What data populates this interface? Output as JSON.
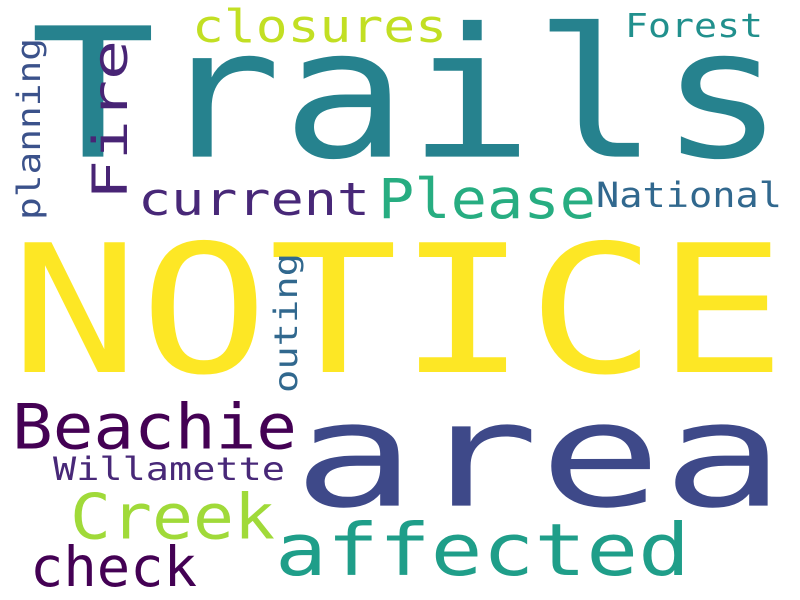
{
  "words": [
    {
      "text": "NOTICE",
      "color": "#fde725",
      "orientation": "horizontal"
    },
    {
      "text": "Trails",
      "color": "#26828e",
      "orientation": "horizontal"
    },
    {
      "text": "area",
      "color": "#3e4989",
      "orientation": "horizontal"
    },
    {
      "text": "affected",
      "color": "#1f9e89",
      "orientation": "horizontal"
    },
    {
      "text": "Beachie",
      "color": "#440154",
      "orientation": "horizontal"
    },
    {
      "text": "Creek",
      "color": "#a0da39",
      "orientation": "horizontal"
    },
    {
      "text": "Please",
      "color": "#27ad81",
      "orientation": "horizontal"
    },
    {
      "text": "current",
      "color": "#482878",
      "orientation": "horizontal"
    },
    {
      "text": "Fire",
      "color": "#482475",
      "orientation": "vertical"
    },
    {
      "text": "check",
      "color": "#440154",
      "orientation": "horizontal"
    },
    {
      "text": "closures",
      "color": "#c2df23",
      "orientation": "horizontal"
    },
    {
      "text": "National",
      "color": "#31688e",
      "orientation": "horizontal"
    },
    {
      "text": "Forest",
      "color": "#21908d",
      "orientation": "horizontal"
    },
    {
      "text": "Willamette",
      "color": "#482878",
      "orientation": "horizontal"
    },
    {
      "text": "planning",
      "color": "#3b528b",
      "orientation": "vertical"
    },
    {
      "text": "outing",
      "color": "#31688e",
      "orientation": "vertical"
    }
  ]
}
